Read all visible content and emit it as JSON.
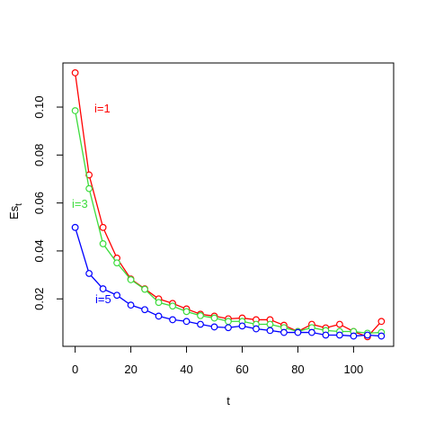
{
  "chart_data": {
    "type": "line",
    "x_label": "t",
    "y_label": {
      "base": "Es",
      "sub": "t"
    },
    "x": [
      0,
      5,
      10,
      15,
      20,
      25,
      30,
      35,
      40,
      45,
      50,
      55,
      60,
      65,
      70,
      75,
      80,
      85,
      90,
      95,
      100,
      105,
      110
    ],
    "series": [
      {
        "name": "i=1",
        "color": "#ff0000",
        "values": [
          0.1143,
          0.0717,
          0.0498,
          0.037,
          0.0283,
          0.0242,
          0.02,
          0.0181,
          0.0158,
          0.0136,
          0.0128,
          0.0117,
          0.012,
          0.0113,
          0.0113,
          0.009,
          0.0064,
          0.0094,
          0.0079,
          0.0094,
          0.0064,
          0.0042,
          0.0106
        ]
      },
      {
        "name": "i=3",
        "color": "#3cdc3c",
        "values": [
          0.0985,
          0.066,
          0.043,
          0.035,
          0.028,
          0.024,
          0.0185,
          0.017,
          0.0147,
          0.013,
          0.012,
          0.0106,
          0.0106,
          0.0094,
          0.0094,
          0.008,
          0.0064,
          0.008,
          0.0068,
          0.0064,
          0.0064,
          0.0057,
          0.006
        ]
      },
      {
        "name": "i=5",
        "color": "#0000ff",
        "values": [
          0.0498,
          0.0306,
          0.0242,
          0.0215,
          0.0174,
          0.0155,
          0.0128,
          0.0113,
          0.0106,
          0.0094,
          0.0083,
          0.008,
          0.0087,
          0.0075,
          0.0068,
          0.006,
          0.006,
          0.006,
          0.0049,
          0.0049,
          0.0045,
          0.0049,
          0.0045
        ]
      }
    ],
    "xlim": [
      -4.4,
      114.4
    ],
    "ylim": [
      0.0002,
      0.1184
    ],
    "xticks": [
      0,
      20,
      40,
      60,
      80,
      100
    ],
    "yticks": [
      0.02,
      0.04,
      0.06,
      0.08,
      {
        "value": 0.1,
        "label": "0.10"
      }
    ]
  }
}
